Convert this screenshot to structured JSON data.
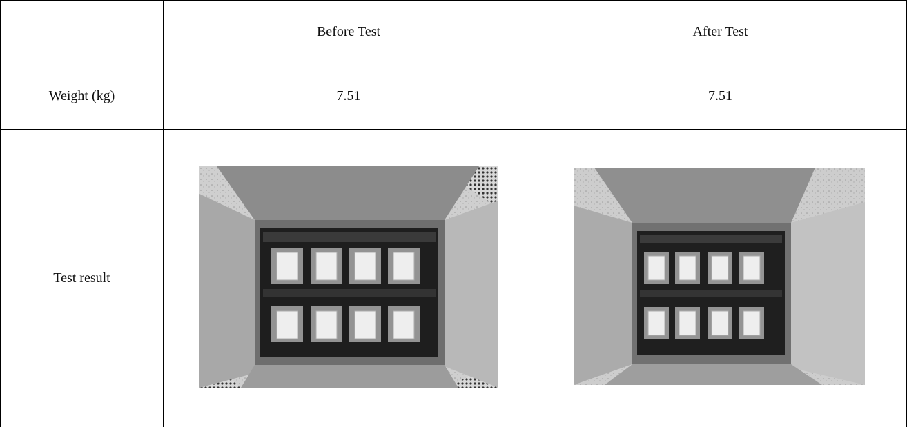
{
  "table": {
    "header": {
      "col1": "",
      "col2": "Before Test",
      "col3": "After Test"
    },
    "rows": [
      {
        "label": "Weight (kg)",
        "before": "7.51",
        "after": "7.51"
      },
      {
        "label": "Test result"
      }
    ]
  },
  "images": {
    "before": {
      "icon": "packaging-box-photo-before"
    },
    "after": {
      "icon": "packaging-box-photo-after"
    }
  }
}
